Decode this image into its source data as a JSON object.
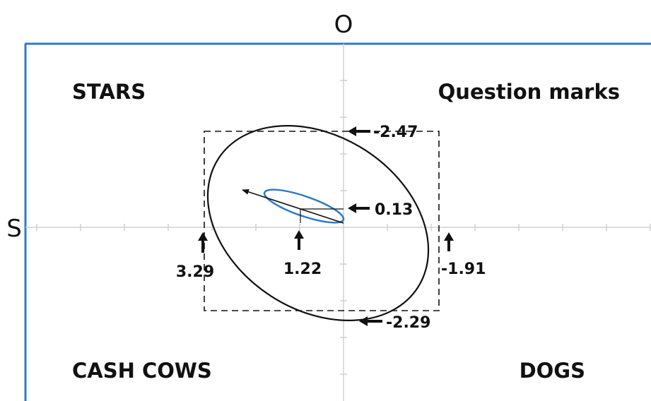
{
  "axis_labels": {
    "top": "O",
    "left": "S"
  },
  "quadrants": {
    "top_left": "STARS",
    "top_right": "Question marks",
    "bottom_left": "CASH COWS",
    "bottom_right": "DOGS"
  },
  "annotations": {
    "top": "-2.47",
    "inner": "0.13",
    "left": "3.29",
    "center": "1.22",
    "right": "-1.91",
    "bottom": "-2.29"
  },
  "colors": {
    "frame": "#2f7bc4",
    "inner_ellipse": "#2f7bc4",
    "outer_ellipse": "#111111",
    "axis": "#d0d0d0",
    "dashed_box": "#111111"
  }
}
